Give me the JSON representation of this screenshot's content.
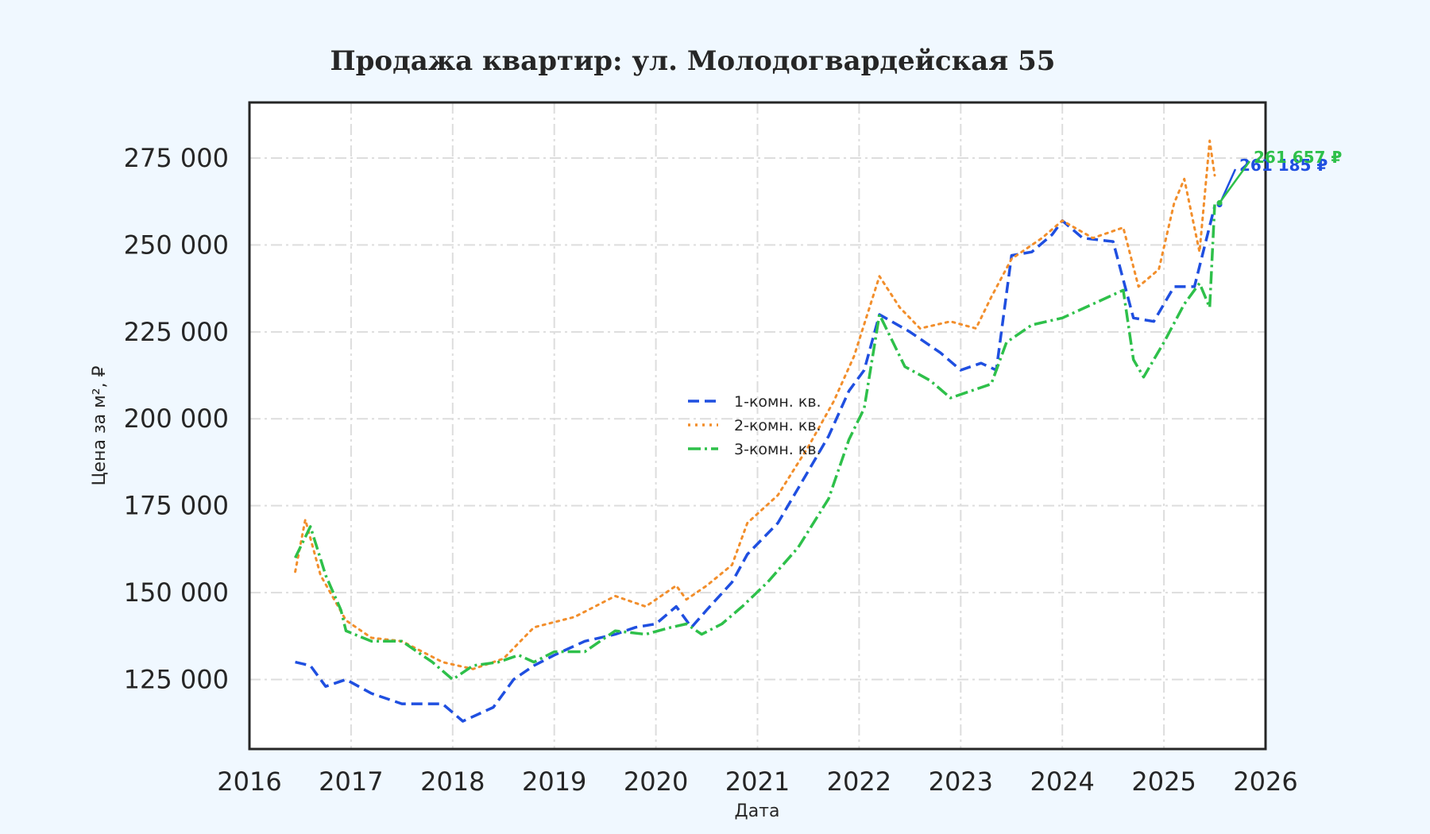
{
  "chart_data": {
    "type": "line",
    "title": "Продажа квартир: ул. Молодогвардейская 55",
    "xlabel": "Дата",
    "ylabel": "Цена за м², ₽",
    "xlim": [
      2016.0,
      2026.0
    ],
    "ylim": [
      105000,
      291000
    ],
    "x_ticks": [
      2016,
      2017,
      2018,
      2019,
      2020,
      2021,
      2022,
      2023,
      2024,
      2025,
      2026
    ],
    "y_ticks": [
      125000,
      150000,
      175000,
      200000,
      225000,
      250000,
      275000
    ],
    "y_tick_labels": [
      "125 000",
      "150 000",
      "175 000",
      "200 000",
      "225 000",
      "250 000",
      "275 000"
    ],
    "grid": true,
    "legend_position": "center",
    "series": [
      {
        "name": "1-комн. кв.",
        "color": "#1f4fe0",
        "dash": "dashed",
        "x": [
          2016.45,
          2016.6,
          2016.75,
          2016.95,
          2017.2,
          2017.5,
          2017.9,
          2018.1,
          2018.4,
          2018.6,
          2018.8,
          2019.0,
          2019.3,
          2019.6,
          2019.8,
          2020.0,
          2020.2,
          2020.35,
          2020.5,
          2020.75,
          2020.9,
          2021.2,
          2021.5,
          2021.7,
          2021.9,
          2022.05,
          2022.2,
          2022.5,
          2022.8,
          2023.0,
          2023.2,
          2023.35,
          2023.5,
          2023.7,
          2023.9,
          2024.0,
          2024.2,
          2024.5,
          2024.7,
          2024.9,
          2025.1,
          2025.3,
          2025.5
        ],
        "y": [
          130000,
          129000,
          123000,
          125000,
          121000,
          118000,
          118000,
          113000,
          117000,
          125000,
          129000,
          132000,
          136000,
          138000,
          140000,
          141000,
          146000,
          140000,
          145000,
          153000,
          161000,
          170000,
          185000,
          195000,
          208000,
          214000,
          230000,
          225000,
          219000,
          214000,
          216000,
          214000,
          247000,
          248000,
          253000,
          257000,
          252000,
          251000,
          229000,
          228000,
          238000,
          238000,
          261185
        ]
      },
      {
        "name": "2-комн. кв.",
        "color": "#f28e2b",
        "dash": "dotted",
        "x": [
          2016.45,
          2016.55,
          2016.7,
          2016.95,
          2017.2,
          2017.5,
          2017.9,
          2018.2,
          2018.5,
          2018.8,
          2019.2,
          2019.6,
          2019.9,
          2020.2,
          2020.3,
          2020.5,
          2020.75,
          2020.9,
          2021.2,
          2021.5,
          2021.75,
          2021.95,
          2022.2,
          2022.4,
          2022.6,
          2022.9,
          2023.15,
          2023.3,
          2023.5,
          2023.8,
          2024.0,
          2024.3,
          2024.6,
          2024.75,
          2024.95,
          2025.1,
          2025.2,
          2025.35,
          2025.45,
          2025.5
        ],
        "y": [
          156000,
          171000,
          155000,
          142000,
          137000,
          136000,
          130000,
          128000,
          131000,
          140000,
          143000,
          149000,
          146000,
          152000,
          148000,
          152000,
          158000,
          170000,
          178000,
          192000,
          205000,
          218000,
          241000,
          232000,
          226000,
          228000,
          226000,
          235000,
          246000,
          252000,
          257000,
          252000,
          255000,
          238000,
          243000,
          262000,
          269000,
          248000,
          280000,
          270000
        ]
      },
      {
        "name": "3-комн. кв.",
        "color": "#2ec04a",
        "dash": "dashdot",
        "x": [
          2016.45,
          2016.6,
          2016.75,
          2016.9,
          2016.95,
          2017.2,
          2017.5,
          2017.8,
          2018.0,
          2018.2,
          2018.45,
          2018.65,
          2018.8,
          2019.0,
          2019.3,
          2019.6,
          2019.9,
          2020.15,
          2020.3,
          2020.45,
          2020.65,
          2020.85,
          2021.1,
          2021.4,
          2021.7,
          2021.9,
          2022.05,
          2022.2,
          2022.45,
          2022.7,
          2022.9,
          2023.1,
          2023.3,
          2023.45,
          2023.7,
          2024.0,
          2024.3,
          2024.6,
          2024.7,
          2024.8,
          2025.0,
          2025.2,
          2025.35,
          2025.45,
          2025.5
        ],
        "y": [
          160000,
          169000,
          155000,
          145000,
          139000,
          136000,
          136000,
          130000,
          125000,
          129000,
          130000,
          132000,
          130000,
          133000,
          133000,
          139000,
          138000,
          140000,
          141000,
          138000,
          141000,
          146000,
          153000,
          163000,
          177000,
          194000,
          203000,
          230000,
          215000,
          211000,
          206000,
          208000,
          210000,
          222000,
          227000,
          229000,
          233000,
          237000,
          217000,
          212000,
          222000,
          233000,
          239000,
          232000,
          261657
        ]
      }
    ],
    "annotations": [
      {
        "text": "261 185 ₽",
        "series": "1-комн. кв.",
        "x": 2025.5,
        "y": 261185,
        "color": "#1f4fe0"
      },
      {
        "text": "261 657 ₽",
        "series": "3-комн. кв.",
        "x": 2025.5,
        "y": 261657,
        "color": "#2ec04a"
      }
    ]
  }
}
